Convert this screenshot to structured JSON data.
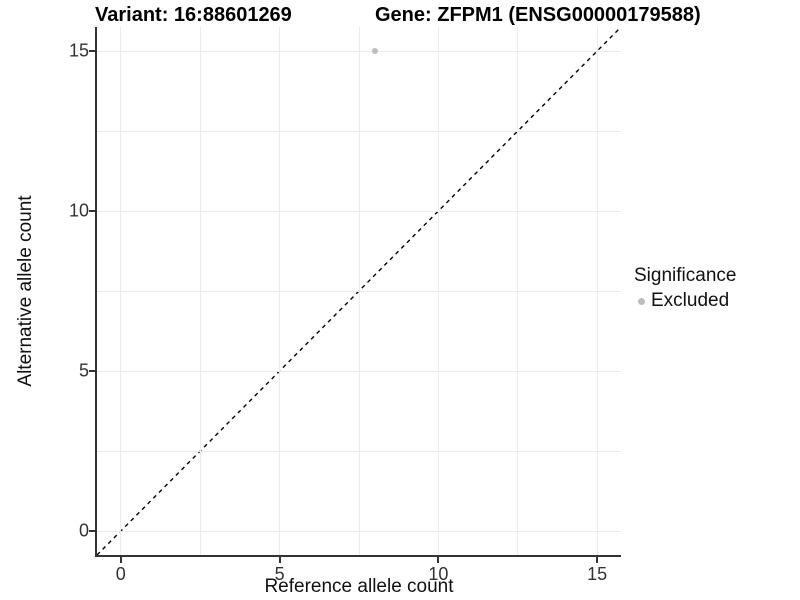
{
  "chart_data": {
    "type": "scatter",
    "title_left": "Variant: 16:88601269",
    "title_right": "Gene: ZFPM1 (ENSG00000179588)",
    "xlabel": "Reference allele count",
    "ylabel": "Alternative allele count",
    "xlim": [
      -0.75,
      15.75
    ],
    "ylim": [
      -0.75,
      15.75
    ],
    "x_ticks": [
      0,
      5,
      10,
      15
    ],
    "y_ticks": [
      0,
      5,
      10,
      15
    ],
    "x_minor_ticks": [
      2.5,
      7.5,
      12.5
    ],
    "y_minor_ticks": [
      2.5,
      7.5,
      12.5
    ],
    "grid": true,
    "points": [
      {
        "x": 8,
        "y": 15,
        "series": "Excluded",
        "color": "#bdbdbd"
      }
    ],
    "reference_line": {
      "kind": "diagonal-identity",
      "style": "dashed",
      "color": "#000000"
    },
    "legend": {
      "title": "Significance",
      "position": "right",
      "entries": [
        {
          "label": "Excluded",
          "color": "#bdbdbd",
          "marker": "dot"
        }
      ]
    },
    "colors": {
      "background": "#ffffff",
      "gridline": "#ebebeb",
      "axis_line": "#333333",
      "tick_text": "#333333",
      "point": "#bdbdbd"
    }
  }
}
